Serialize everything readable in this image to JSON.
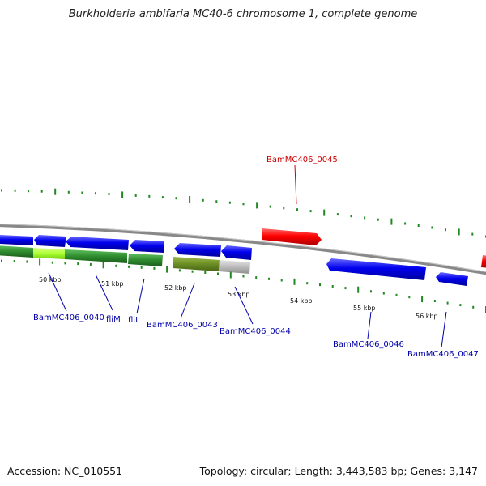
{
  "title": "Burkholderia ambifaria MC40-6 chromosome 1, complete genome",
  "footer": {
    "accession": "Accession: NC_010551",
    "summary": "Topology: circular; Length: 3,443,583 bp; Genes: 3,147"
  },
  "scale_labels": [
    "50 kbp",
    "51 kbp",
    "52 kbp",
    "53 kbp",
    "54 kbp",
    "55 kbp",
    "56 kbp"
  ],
  "gene_labels": [
    {
      "text": "BamMC406_0045",
      "color": "#cc0000"
    },
    {
      "text": "BamMC406_0040",
      "color": "#0000aa"
    },
    {
      "text": "fliM",
      "color": "#0000aa"
    },
    {
      "text": "fliL",
      "color": "#0000aa"
    },
    {
      "text": "BamMC406_0043",
      "color": "#0000aa"
    },
    {
      "text": "BamMC406_0044",
      "color": "#0000aa"
    },
    {
      "text": "BamMC406_0046",
      "color": "#0000aa"
    },
    {
      "text": "BamMC406_0047",
      "color": "#0000aa"
    }
  ],
  "colors": {
    "forward_gene": "#ff0000",
    "reverse_gene": "#0000ee",
    "backbone": "#888888",
    "tick": "#228822",
    "cog_green": "#2e8b2e",
    "cog_lime": "#aaff33",
    "cog_olive": "#6b8e23",
    "cog_gray": "#bbbbbb"
  }
}
